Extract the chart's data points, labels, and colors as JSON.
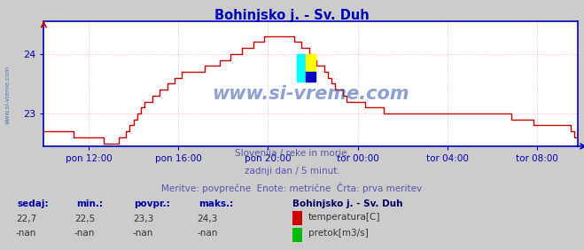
{
  "title": "Bohinjsko j. - Sv. Duh",
  "title_color": "#0000bb",
  "bg_color": "#cccccc",
  "plot_bg_color": "#ffffff",
  "grid_color": "#ffaaaa",
  "axis_color": "#0000bb",
  "line_color": "#cc0000",
  "ymin": 22.45,
  "ymax": 24.55,
  "yticks": [
    23,
    24
  ],
  "xlabel_ticks": [
    "pon 12:00",
    "pon 16:00",
    "pon 20:00",
    "tor 00:00",
    "tor 04:00",
    "tor 08:00"
  ],
  "subtitle1": "Slovenija / reke in morje.",
  "subtitle2": "zadnji dan / 5 minut.",
  "subtitle3": "Meritve: povprečne  Enote: metrične  Črta: prva meritev",
  "subtitle_color": "#5555aa",
  "footer_label_color": "#0000aa",
  "footer_value_color": "#333333",
  "footer_bold_color": "#000066",
  "watermark": "www.si-vreme.com",
  "watermark_color": "#3355aa",
  "sedaj": "22,7",
  "min_val": "22,5",
  "povpr": "23,3",
  "maks": "24,3",
  "sedaj2": "-nan",
  "min_val2": "-nan",
  "povpr2": "-nan",
  "maks2": "-nan",
  "legend_title": "Bohinjsko j. - Sv. Duh",
  "legend1": "temperatura[C]",
  "legend2": "pretok[m3/s]",
  "temp_data_y": [
    22.7,
    22.7,
    22.7,
    22.7,
    22.7,
    22.7,
    22.7,
    22.7,
    22.6,
    22.6,
    22.6,
    22.6,
    22.6,
    22.6,
    22.6,
    22.6,
    22.5,
    22.5,
    22.5,
    22.5,
    22.6,
    22.6,
    22.7,
    22.8,
    22.9,
    23.0,
    23.1,
    23.2,
    23.2,
    23.3,
    23.3,
    23.4,
    23.4,
    23.5,
    23.5,
    23.6,
    23.6,
    23.7,
    23.7,
    23.7,
    23.7,
    23.7,
    23.7,
    23.8,
    23.8,
    23.8,
    23.8,
    23.9,
    23.9,
    23.9,
    24.0,
    24.0,
    24.0,
    24.1,
    24.1,
    24.1,
    24.2,
    24.2,
    24.2,
    24.3,
    24.3,
    24.3,
    24.3,
    24.3,
    24.3,
    24.3,
    24.3,
    24.2,
    24.2,
    24.1,
    24.1,
    24.0,
    23.9,
    23.8,
    23.8,
    23.7,
    23.6,
    23.5,
    23.4,
    23.4,
    23.3,
    23.2,
    23.2,
    23.2,
    23.2,
    23.2,
    23.1,
    23.1,
    23.1,
    23.1,
    23.1,
    23.0,
    23.0,
    23.0,
    23.0,
    23.0,
    23.0,
    23.0,
    23.0,
    23.0,
    23.0,
    23.0,
    23.0,
    23.0,
    23.0,
    23.0,
    23.0,
    23.0,
    23.0,
    23.0,
    23.0,
    23.0,
    23.0,
    23.0,
    23.0,
    23.0,
    23.0,
    23.0,
    23.0,
    23.0,
    23.0,
    23.0,
    23.0,
    23.0,
    23.0,
    22.9,
    22.9,
    22.9,
    22.9,
    22.9,
    22.9,
    22.8,
    22.8,
    22.8,
    22.8,
    22.8,
    22.8,
    22.8,
    22.8,
    22.8,
    22.8,
    22.7,
    22.6,
    22.6
  ]
}
